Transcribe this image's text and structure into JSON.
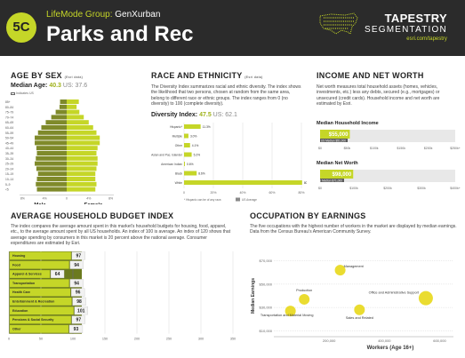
{
  "header": {
    "code": "5C",
    "lifemode_label": "LifeMode Group:",
    "lifemode_name": "GenXurban",
    "segment": "Parks and Rec",
    "brand_line1": "TAPESTRY",
    "brand_line2": "SEGMENTATION",
    "brand_url": "esri.com/tapestry"
  },
  "age": {
    "title": "AGE BY SEX",
    "note": "(Esri data)",
    "median_label": "Median Age:",
    "median": "40.3",
    "us_label": "US: 37.6",
    "indicates": "Indicates US",
    "age_groups": [
      "85+",
      "80–84",
      "75–79",
      "70–74",
      "65–69",
      "60–64",
      "55–59",
      "50–54",
      "45–49",
      "40–44",
      "35–39",
      "30–34",
      "25–29",
      "20–24",
      "15–19",
      "10–14",
      "5–9",
      "<5"
    ],
    "male": [
      1.2,
      1.3,
      2,
      2.8,
      3.8,
      4.6,
      5.2,
      5.8,
      5.8,
      5.5,
      5.4,
      5.6,
      5.8,
      5.5,
      5.2,
      5.4,
      5.6,
      5.4
    ],
    "female": [
      2.2,
      1.8,
      2.3,
      3.1,
      4,
      4.8,
      5.4,
      6,
      6,
      5.6,
      5.4,
      5.6,
      5.6,
      5.4,
      5.2,
      5.2,
      5.4,
      5.2
    ],
    "ticks": [
      "8%",
      "4%",
      "0",
      "4%",
      "8%"
    ],
    "male_label": "Male",
    "female_label": "Female"
  },
  "race": {
    "title": "RACE AND ETHNICITY",
    "note": "(Esri data)",
    "desc": "The Diversity Index summarizes racial and ethnic diversity. The index shows the likelihood that two persons, chosen at random from the same area, belong to different race or ethnic groups. The index ranges from 0 (no diversity) to 100 (complete diversity).",
    "diversity_label": "Diversity Index:",
    "diversity": "47.5",
    "us_label": "US: 62.1",
    "categories": [
      "Hispanic*",
      "Multiple",
      "Other",
      "Asian and Pac. Islander",
      "American Indian",
      "Black",
      "White"
    ],
    "values": [
      11.3,
      3.0,
      4.1,
      5.2,
      0.6,
      8.6,
      80.5
    ],
    "value_labels": [
      "11.3%",
      "3.0%",
      "4.1%",
      "5.2%",
      "0.6%",
      "8.6%",
      "80.5%"
    ],
    "ticks": [
      "0",
      "20%",
      "40%",
      "60%",
      "80%"
    ],
    "footnote": "* Hispanic can be of any race.",
    "us_avg": "US Average"
  },
  "income": {
    "title": "INCOME AND NET WORTH",
    "desc": "Net worth measures total household assets (homes, vehicles, investments, etc.) less any debts, secured (e.g., mortgages) or unsecured (credit cards). Household income and net worth are estimated by Esri.",
    "hh_label": "Median Household Income",
    "hh_value": "$55,000",
    "hh_us": "US Median $51,000",
    "hh_ticks": [
      "$0",
      "$50k",
      "$100k",
      "$150k",
      "$200k",
      "$250k+"
    ],
    "hh_max": 250,
    "hh_val": 55,
    "hh_us_val": 51,
    "nw_label": "Median Net Worth",
    "nw_value": "$98,000",
    "nw_us": "US Median $71,000",
    "nw_ticks": [
      "$0",
      "$100k",
      "$200k",
      "$300k",
      "$400k+"
    ],
    "nw_max": 400,
    "nw_val": 98,
    "nw_us_val": 71
  },
  "budget": {
    "title": "AVERAGE HOUSEHOLD BUDGET INDEX",
    "desc": "The index compares the average amount spent in this market's household budgets for housing, food, apparel, etc., to the average amount spent by all US households. An index of 100 is average. An index of 120 shows that average spending by consumers in this market is 20 percent above the national average. Consumer expenditures are estimated by Esri.",
    "categories": [
      "Housing",
      "Food",
      "Apparel & Services",
      "Transportation",
      "Health Care",
      "Entertainment & Recreation",
      "Education",
      "Pensions & Social Security",
      "Other"
    ],
    "values": [
      97,
      94,
      64,
      94,
      96,
      98,
      101,
      97,
      93
    ],
    "ticks": [
      "0",
      "50",
      "100",
      "150",
      "200",
      "250",
      "300",
      "350"
    ]
  },
  "occupation": {
    "title": "OCCUPATION BY EARNINGS",
    "desc": "The five occupations with the highest number of workers in the market are displayed by median earnings. Data from the Census Bureau's American Community Survey.",
    "ylabel": "Median Earnings",
    "xlabel": "Workers (Age 16+)",
    "yticks": [
      "$70,000",
      "$50,000",
      "$30,000",
      "$10,000"
    ],
    "xticks": [
      "200,000",
      "400,000",
      "600,000"
    ],
    "points": [
      {
        "label": "Management",
        "x": 240000,
        "y": 62000
      },
      {
        "label": "Production",
        "x": 110000,
        "y": 37000
      },
      {
        "label": "Office and Administrative Support",
        "x": 550000,
        "y": 38000
      },
      {
        "label": "Transportation and Material Moving",
        "x": 60000,
        "y": 27000
      },
      {
        "label": "Sales and Related",
        "x": 310000,
        "y": 28000
      }
    ]
  }
}
